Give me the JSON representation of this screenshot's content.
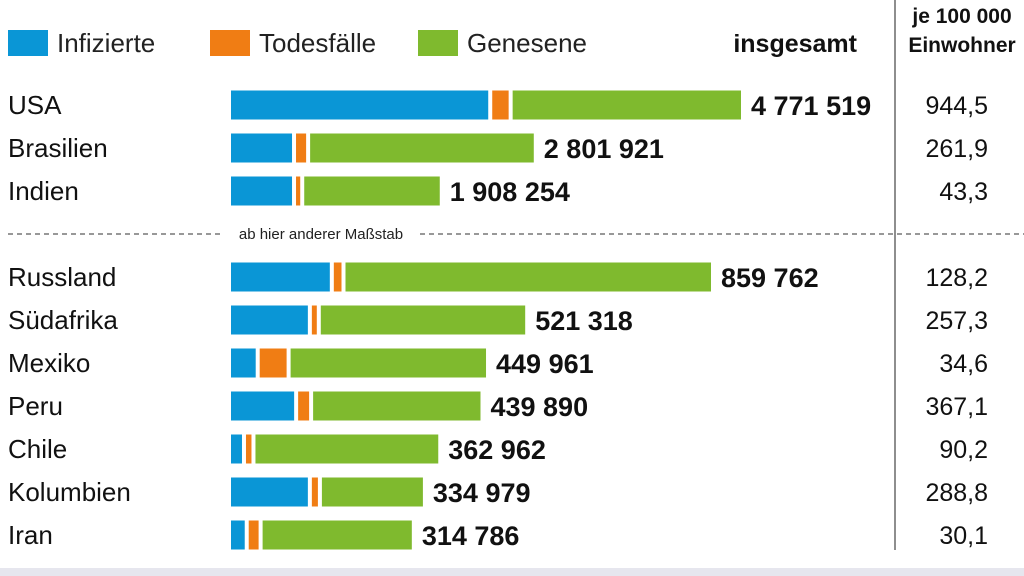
{
  "colors": {
    "infected": "#0a96d6",
    "deaths": "#f07d14",
    "recovered": "#7fba2e"
  },
  "legend": {
    "infected": "Infizierte",
    "deaths": "Todesfälle",
    "recovered": "Genesene"
  },
  "headers": {
    "total": "insgesamt",
    "per100k_line1": "je 100 000",
    "per100k_line2": "Einwohner"
  },
  "scale_note": "ab hier anderer Maßstab",
  "chart_data": {
    "type": "bar",
    "stacked": true,
    "orientation": "horizontal",
    "series": [
      {
        "name": "Infizierte"
      },
      {
        "name": "Todesfälle"
      },
      {
        "name": "Genesene"
      }
    ],
    "groups": [
      {
        "rows": [
          {
            "country": "USA",
            "total": "4 771 519",
            "total_value": 4771519,
            "per100k": "944,5",
            "infected": 2445000,
            "deaths": 156000,
            "recovered": 2170519
          },
          {
            "country": "Brasilien",
            "total": "2 801 921",
            "total_value": 2801921,
            "per100k": "261,9",
            "infected": 580000,
            "deaths": 96000,
            "recovered": 2125921
          },
          {
            "country": "Indien",
            "total": "1 908 254",
            "total_value": 1908254,
            "per100k": "43,3",
            "infected": 580000,
            "deaths": 40000,
            "recovered": 1288254
          }
        ]
      },
      {
        "rows": [
          {
            "country": "Russland",
            "total": "859 762",
            "total_value": 859762,
            "per100k": "128,2",
            "infected": 180000,
            "deaths": 14000,
            "recovered": 665762
          },
          {
            "country": "Südafrika",
            "total": "521 318",
            "total_value": 521318,
            "per100k": "257,3",
            "infected": 140000,
            "deaths": 9000,
            "recovered": 372318
          },
          {
            "country": "Mexiko",
            "total": "449 961",
            "total_value": 449961,
            "per100k": "34,6",
            "infected": 45000,
            "deaths": 49000,
            "recovered": 355961
          },
          {
            "country": "Peru",
            "total": "439 890",
            "total_value": 439890,
            "per100k": "367,1",
            "infected": 115000,
            "deaths": 20000,
            "recovered": 304890
          },
          {
            "country": "Chile",
            "total": "362 962",
            "total_value": 362962,
            "per100k": "90,2",
            "infected": 20000,
            "deaths": 10000,
            "recovered": 332962
          },
          {
            "country": "Kolumbien",
            "total": "334 979",
            "total_value": 334979,
            "per100k": "288,8",
            "infected": 140000,
            "deaths": 11000,
            "recovered": 183979
          },
          {
            "country": "Iran",
            "total": "314 786",
            "total_value": 314786,
            "per100k": "30,1",
            "infected": 25000,
            "deaths": 18000,
            "recovered": 271786
          }
        ]
      }
    ]
  }
}
